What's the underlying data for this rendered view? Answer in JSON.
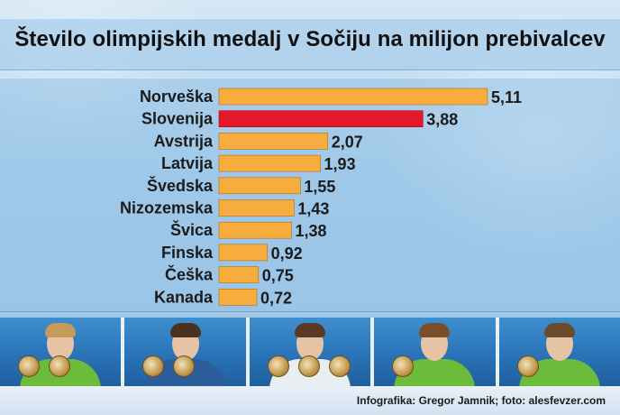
{
  "chart_data": {
    "type": "bar",
    "orientation": "horizontal",
    "title": "Število olimpijskih medalj v Sočiju na milijon prebivalcev",
    "categories": [
      "Norveška",
      "Slovenija",
      "Avstrija",
      "Latvija",
      "Švedska",
      "Nizozemska",
      "Švica",
      "Finska",
      "Češka",
      "Kanada"
    ],
    "values": [
      5.11,
      3.88,
      2.07,
      1.93,
      1.55,
      1.43,
      1.38,
      0.92,
      0.75,
      0.72
    ],
    "value_labels": [
      "5,11",
      "3,88",
      "2,07",
      "1,93",
      "1,55",
      "1,43",
      "1,38",
      "0,92",
      "0,75",
      "0,72"
    ],
    "highlight_category": "Slovenija",
    "colors": {
      "bar": "#f7ad3d",
      "highlight": "#e5182a",
      "bar_stroke": "#b36b12",
      "text": "#1b1b1b"
    },
    "xlabel": "",
    "ylabel": "",
    "xlim": [
      0,
      5.11
    ],
    "grid": false,
    "legend": "none"
  },
  "credit": "Infografika: Gregor Jamnik; foto: alesfevzer.com",
  "photos": [
    {
      "hair": "#c79a5b",
      "jacket": "#6dbb3a",
      "medals": 2
    },
    {
      "hair": "#4a3222",
      "jacket": "#2d5e9c",
      "medals": 2
    },
    {
      "hair": "#5a3a24",
      "jacket": "#e9eef2",
      "medals": 3
    },
    {
      "hair": "#7a4e2a",
      "jacket": "#6dbb3a",
      "medals": 1
    },
    {
      "hair": "#6b4a2e",
      "jacket": "#6dbb3a",
      "medals": 1
    }
  ]
}
